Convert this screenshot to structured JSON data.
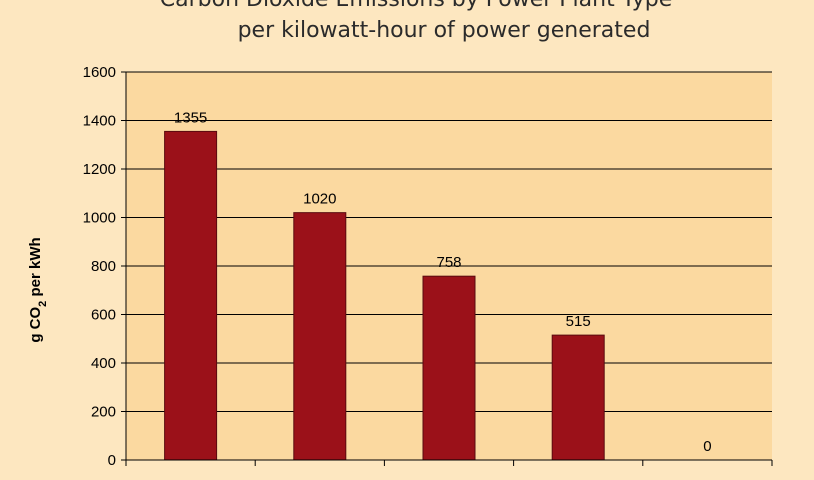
{
  "chart_data": {
    "type": "bar",
    "title": "Carbon Dioxide Emissions by Power Plant Type",
    "subtitle": "per kilowatt-hour of power generated",
    "ylabel": "g CO2 per kWh",
    "ylabel_parts": {
      "pre": "g CO",
      "sub": "2",
      "post": " per kWh"
    },
    "ylim": [
      0,
      1600
    ],
    "yticks": [
      0,
      200,
      400,
      600,
      800,
      1000,
      1200,
      1400,
      1600
    ],
    "values": [
      1355,
      1020,
      758,
      515,
      0
    ],
    "data_labels": [
      "1355",
      "1020",
      "758",
      "515",
      "0"
    ],
    "grid": true,
    "legend": "none",
    "colors": {
      "bar": "#9b1119",
      "bar_stroke": "#5a0a0f",
      "plot_bg": "#fbd9a0",
      "page_bg": "#fde7c0",
      "gridline": "#000000"
    }
  }
}
